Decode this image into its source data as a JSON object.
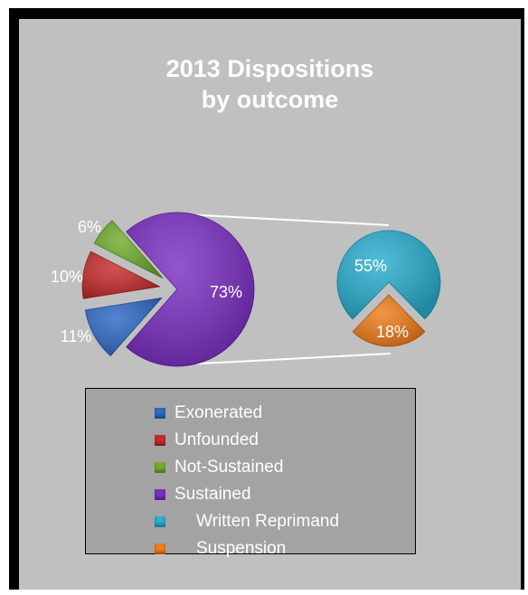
{
  "chart_data": {
    "type": "pie",
    "title": [
      "2013 Dispositions",
      "by outcome"
    ],
    "main_pie": {
      "slices": [
        {
          "name": "Sustained",
          "label": "73%",
          "color": "#7b2fc2"
        },
        {
          "name": "Exonerated",
          "label": "11%",
          "color": "#2f69c5"
        },
        {
          "name": "Unfounded",
          "label": "10%",
          "color": "#c62c2c"
        },
        {
          "name": "Not-Sustained",
          "label": "6%",
          "color": "#6fae2d"
        }
      ]
    },
    "sub_pie": {
      "parent": "Sustained",
      "slices": [
        {
          "name": "Written Reprimand",
          "label": "55%",
          "color": "#2aaecf"
        },
        {
          "name": "Suspension",
          "label": "18%",
          "color": "#ef7d1a"
        }
      ]
    },
    "legend": {
      "placement": "bottom",
      "items": [
        {
          "label": "Exonerated",
          "color": "#2f69c5",
          "indent": false
        },
        {
          "label": "Unfounded",
          "color": "#c62c2c",
          "indent": false
        },
        {
          "label": "Not-Sustained",
          "color": "#6fae2d",
          "indent": false
        },
        {
          "label": "Sustained",
          "color": "#7b2fc2",
          "indent": false
        },
        {
          "label": "Written Reprimand",
          "color": "#2aaecf",
          "indent": true
        },
        {
          "label": "Suspension",
          "color": "#ef7d1a",
          "indent": true
        }
      ]
    }
  }
}
